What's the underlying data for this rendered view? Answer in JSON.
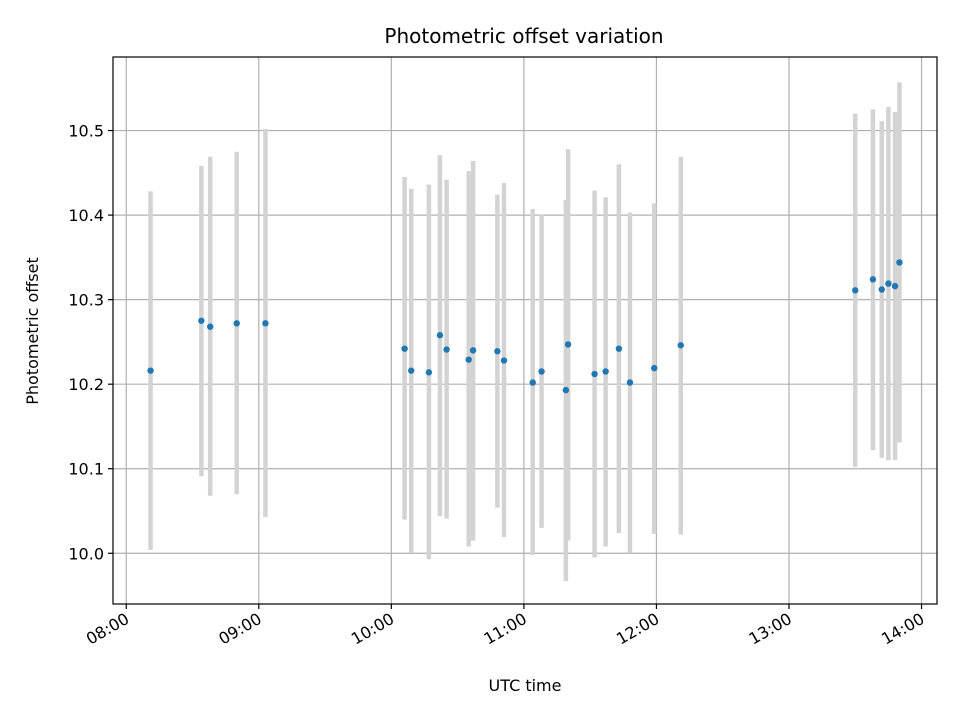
{
  "chart_data": {
    "type": "scatter",
    "title": "Photometric offset variation",
    "xlabel": "UTC time",
    "ylabel": "Photometric offset",
    "x_ticks": [
      "08:00",
      "09:00",
      "10:00",
      "11:00",
      "12:00",
      "13:00",
      "14:00"
    ],
    "x_range": [
      "07:54",
      "14:07"
    ],
    "y_ticks": [
      "10.0",
      "10.1",
      "10.2",
      "10.3",
      "10.4",
      "10.5"
    ],
    "y_range": [
      9.94,
      10.587
    ],
    "grid": true,
    "marker_color": "#1f77b4",
    "errorbar_color": "#d3d3d3",
    "points": [
      {
        "time": "08:11",
        "value": 10.216,
        "low": 10.004,
        "high": 10.428
      },
      {
        "time": "08:34",
        "value": 10.275,
        "low": 10.091,
        "high": 10.458
      },
      {
        "time": "08:38",
        "value": 10.268,
        "low": 10.068,
        "high": 10.469
      },
      {
        "time": "08:50",
        "value": 10.272,
        "low": 10.07,
        "high": 10.475
      },
      {
        "time": "09:03",
        "value": 10.272,
        "low": 10.043,
        "high": 10.502
      },
      {
        "time": "10:06",
        "value": 10.242,
        "low": 10.04,
        "high": 10.445
      },
      {
        "time": "10:09",
        "value": 10.216,
        "low": 10.001,
        "high": 10.431
      },
      {
        "time": "10:17",
        "value": 10.214,
        "low": 9.993,
        "high": 10.436
      },
      {
        "time": "10:22",
        "value": 10.258,
        "low": 10.044,
        "high": 10.471
      },
      {
        "time": "10:25",
        "value": 10.241,
        "low": 10.041,
        "high": 10.442
      },
      {
        "time": "10:35",
        "value": 10.229,
        "low": 10.008,
        "high": 10.452
      },
      {
        "time": "10:37",
        "value": 10.24,
        "low": 10.015,
        "high": 10.464
      },
      {
        "time": "10:48",
        "value": 10.239,
        "low": 10.054,
        "high": 10.424
      },
      {
        "time": "10:51",
        "value": 10.228,
        "low": 10.019,
        "high": 10.438
      },
      {
        "time": "11:04",
        "value": 10.202,
        "low": 9.998,
        "high": 10.407
      },
      {
        "time": "11:08",
        "value": 10.215,
        "low": 10.03,
        "high": 10.401
      },
      {
        "time": "11:19",
        "value": 10.193,
        "low": 9.967,
        "high": 10.418
      },
      {
        "time": "11:20",
        "value": 10.247,
        "low": 10.015,
        "high": 10.478
      },
      {
        "time": "11:32",
        "value": 10.212,
        "low": 9.995,
        "high": 10.429
      },
      {
        "time": "11:37",
        "value": 10.215,
        "low": 10.008,
        "high": 10.421
      },
      {
        "time": "11:43",
        "value": 10.242,
        "low": 10.024,
        "high": 10.46
      },
      {
        "time": "11:48",
        "value": 10.202,
        "low": 10.001,
        "high": 10.403
      },
      {
        "time": "11:59",
        "value": 10.219,
        "low": 10.023,
        "high": 10.414
      },
      {
        "time": "12:11",
        "value": 10.246,
        "low": 10.022,
        "high": 10.469
      },
      {
        "time": "13:30",
        "value": 10.311,
        "low": 10.102,
        "high": 10.52
      },
      {
        "time": "13:38",
        "value": 10.324,
        "low": 10.122,
        "high": 10.525
      },
      {
        "time": "13:42",
        "value": 10.312,
        "low": 10.113,
        "high": 10.511
      },
      {
        "time": "13:45",
        "value": 10.319,
        "low": 10.11,
        "high": 10.528
      },
      {
        "time": "13:48",
        "value": 10.316,
        "low": 10.11,
        "high": 10.522
      },
      {
        "time": "13:50",
        "value": 10.344,
        "low": 10.131,
        "high": 10.557
      }
    ]
  }
}
